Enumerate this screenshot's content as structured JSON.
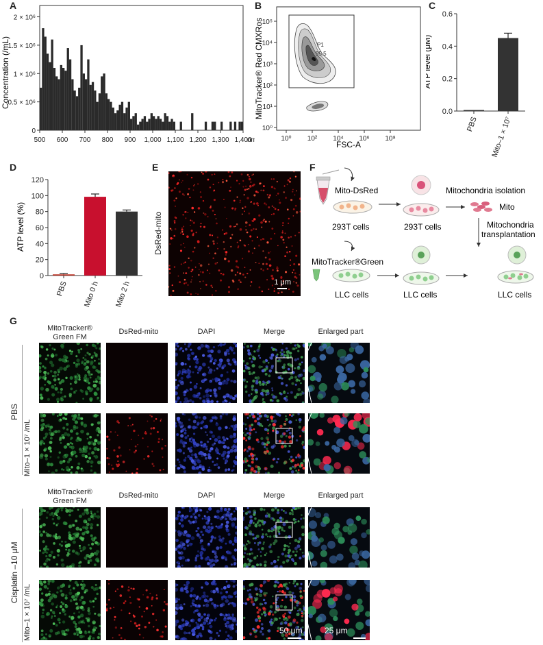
{
  "panels": {
    "A": "A",
    "B": "B",
    "C": "C",
    "D": "D",
    "E": "E",
    "F": "F",
    "G": "G"
  },
  "chart_data": [
    {
      "type": "bar",
      "panel": "A",
      "ylabel": "Concentration (/mL)",
      "xlabel": "nm",
      "xlim": [
        500,
        1400
      ],
      "ylim": [
        0,
        2200000
      ],
      "yticks": [
        "0",
        "0.5 × 10⁶",
        "1 × 10⁶",
        "1.5 × 10⁶",
        "2 × 10⁶"
      ],
      "ytick_values": [
        0,
        500000,
        1000000,
        1500000,
        2000000
      ],
      "xticks": [
        "500",
        "600",
        "700",
        "800",
        "900",
        "1,000",
        "1,100",
        "1,200",
        "1,300",
        "1,400"
      ],
      "xtick_values": [
        500,
        600,
        700,
        800,
        900,
        1000,
        1100,
        1200,
        1300,
        1400
      ],
      "bin_width": 10,
      "x": [
        505,
        515,
        525,
        535,
        545,
        555,
        565,
        575,
        585,
        595,
        605,
        615,
        625,
        635,
        645,
        655,
        665,
        675,
        685,
        695,
        705,
        715,
        725,
        735,
        745,
        755,
        765,
        775,
        785,
        795,
        805,
        815,
        825,
        835,
        845,
        855,
        865,
        875,
        885,
        895,
        905,
        915,
        925,
        935,
        945,
        955,
        965,
        975,
        985,
        995,
        1005,
        1015,
        1025,
        1035,
        1045,
        1055,
        1065,
        1075,
        1085,
        1095,
        1125,
        1175,
        1235,
        1265,
        1275,
        1305,
        1345,
        1365,
        1385,
        1395
      ],
      "values": [
        750000,
        1800000,
        1650000,
        1350000,
        1200000,
        1600000,
        1100000,
        950000,
        900000,
        1150000,
        1100000,
        1050000,
        1450000,
        1250000,
        900000,
        700000,
        600000,
        750000,
        1500000,
        1000000,
        900000,
        1250000,
        800000,
        850000,
        700000,
        500000,
        650000,
        950000,
        1000000,
        650000,
        550000,
        500000,
        400000,
        300000,
        350000,
        450000,
        500000,
        300000,
        400000,
        500000,
        200000,
        250000,
        300000,
        100000,
        150000,
        200000,
        250000,
        150000,
        200000,
        300000,
        250000,
        200000,
        250000,
        200000,
        150000,
        300000,
        250000,
        150000,
        200000,
        150000,
        150000,
        300000,
        150000,
        150000,
        150000,
        150000,
        150000,
        150000,
        150000,
        150000
      ]
    },
    {
      "type": "scatter",
      "panel": "B",
      "subtype": "flow cytometry contour",
      "xlabel": "FSC-A",
      "ylabel": "MitoTracker® Red CMXRos",
      "xscale": "log",
      "yscale": "log",
      "xticks": [
        "10⁰",
        "10²",
        "10⁴",
        "10⁶",
        "10⁸"
      ],
      "yticks": [
        "10⁰",
        "10¹",
        "10²",
        "10³",
        "10⁴",
        "10⁵"
      ],
      "gate": {
        "name": "P1",
        "value": "95.5"
      }
    },
    {
      "type": "bar",
      "panel": "C",
      "categories": [
        "PBS",
        "Mito–1 × 10⁷"
      ],
      "values": [
        0.0,
        0.45
      ],
      "errors": [
        0.0,
        0.03
      ],
      "ylabel": "ATP level (μM)",
      "ylim": [
        0,
        0.6
      ],
      "yticks": [
        "0.0",
        "0.2",
        "0.4",
        "0.6"
      ],
      "ytick_values": [
        0,
        0.2,
        0.4,
        0.6
      ],
      "colors": [
        "#333333",
        "#333333"
      ]
    },
    {
      "type": "bar",
      "panel": "D",
      "categories": [
        "PBS",
        "Mito 0 h",
        "Mito 2 h"
      ],
      "values": [
        1.5,
        98.5,
        80.0
      ],
      "errors": [
        1.0,
        3.5,
        2.0
      ],
      "ylabel": "ATP level (%)",
      "ylim": [
        0,
        120
      ],
      "yticks": [
        "0",
        "20",
        "40",
        "60",
        "80",
        "100",
        "120"
      ],
      "ytick_values": [
        0,
        20,
        40,
        60,
        80,
        100,
        120
      ],
      "colors": [
        "#c0392b",
        "#c8102e",
        "#333333"
      ]
    }
  ],
  "panelE": {
    "label": "DsRed-mito",
    "scale": "1 μm"
  },
  "panelF": {
    "reagent1": "Mito-DsRed",
    "cells_293t_a": "293T cells",
    "cells_293t_b": "293T cells",
    "isolation": "Mitochondria isolation",
    "mito": "Mito",
    "transplant1": "Mitochondria",
    "transplant2": "transplantation",
    "reagent2": "MitoTracker®Green",
    "llc_a": "LLC cells",
    "llc_b": "LLC cells",
    "llc_c": "LLC cells"
  },
  "panelG": {
    "columns": [
      "MitoTracker® Green FM",
      "DsRed-mito",
      "DAPI",
      "Merge",
      "Enlarged part"
    ],
    "col1_line1": "MitoTracker®",
    "col1_line2": "Green FM",
    "group1_label": "PBS",
    "group2_label": "Cisplatin –10 μM",
    "row_mito_label": "Mito–1 × 10⁷ /mL",
    "scale_merge": "50 μm",
    "scale_enlarged": "25 μm"
  }
}
